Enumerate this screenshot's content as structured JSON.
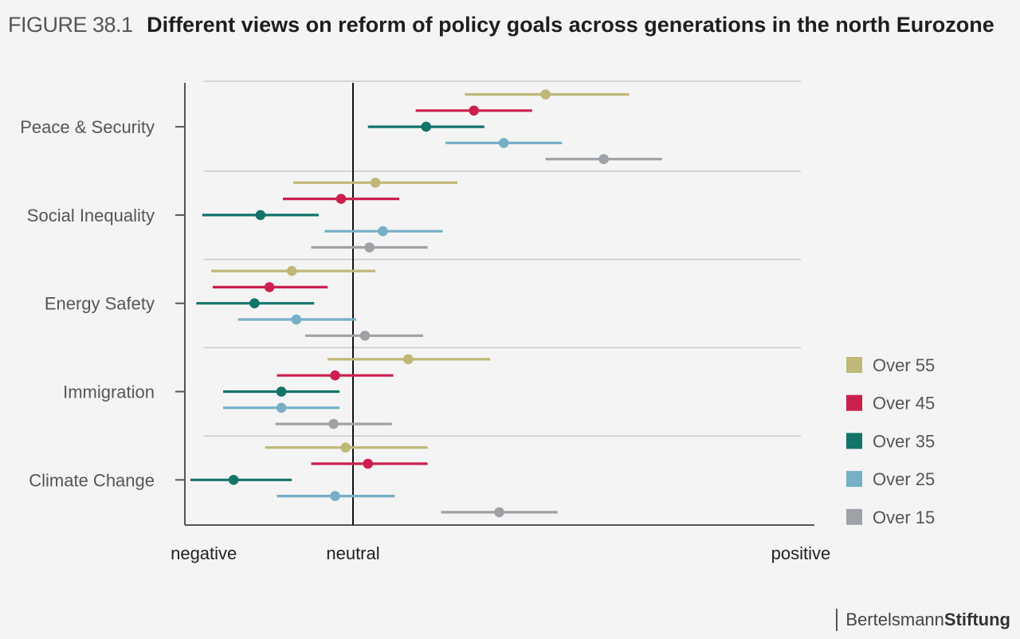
{
  "header": {
    "figure_label": "FIGURE 38.1",
    "title": "Different views on reform of policy goals across generations in the north Eurozone"
  },
  "logo": {
    "part1": "Bertelsmann",
    "part2": "Stiftung"
  },
  "chart_data": {
    "type": "scatter",
    "subtype": "dot-with-interval",
    "title": "Different views on reform of policy goals across generations in the north Eurozone",
    "xlabel": "",
    "ylabel": "",
    "x_scale_note": "unitless: negative=-1, neutral=0, positive=3",
    "x_ticks": [
      {
        "value": -1,
        "label": "negative"
      },
      {
        "value": 0,
        "label": "neutral"
      },
      {
        "value": 3,
        "label": "positive"
      }
    ],
    "xlim": [
      -1.13,
      3.1
    ],
    "reference_line": 0,
    "legend_position": "right",
    "categories": [
      "Peace & Security",
      "Social Inequality",
      "Energy Safety",
      "Immigration",
      "Climate Change"
    ],
    "series": [
      {
        "name": "Over 55",
        "color": "#bfb878",
        "points": [
          {
            "value": 1.29,
            "low": 0.75,
            "high": 1.85
          },
          {
            "value": 0.15,
            "low": -0.4,
            "high": 0.7
          },
          {
            "value": -0.41,
            "low": -0.95,
            "high": 0.15
          },
          {
            "value": 0.37,
            "low": -0.17,
            "high": 0.92
          },
          {
            "value": -0.05,
            "low": -0.59,
            "high": 0.5
          }
        ]
      },
      {
        "name": "Over 45",
        "color": "#cc1f4e",
        "points": [
          {
            "value": 0.81,
            "low": 0.42,
            "high": 1.2
          },
          {
            "value": -0.08,
            "low": -0.47,
            "high": 0.31
          },
          {
            "value": -0.56,
            "low": -0.94,
            "high": -0.17
          },
          {
            "value": -0.12,
            "low": -0.51,
            "high": 0.27
          },
          {
            "value": 0.1,
            "low": -0.28,
            "high": 0.5
          }
        ]
      },
      {
        "name": "Over 35",
        "color": "#137468",
        "points": [
          {
            "value": 0.49,
            "low": 0.1,
            "high": 0.88
          },
          {
            "value": -0.62,
            "low": -1.01,
            "high": -0.23
          },
          {
            "value": -0.66,
            "low": -1.05,
            "high": -0.26
          },
          {
            "value": -0.48,
            "low": -0.87,
            "high": -0.09
          },
          {
            "value": -0.8,
            "low": -1.09,
            "high": -0.41
          }
        ]
      },
      {
        "name": "Over 25",
        "color": "#76afc6",
        "points": [
          {
            "value": 1.01,
            "low": 0.62,
            "high": 1.4
          },
          {
            "value": 0.2,
            "low": -0.19,
            "high": 0.6
          },
          {
            "value": -0.38,
            "low": -0.77,
            "high": 0.02
          },
          {
            "value": -0.48,
            "low": -0.87,
            "high": -0.09
          },
          {
            "value": -0.12,
            "low": -0.51,
            "high": 0.28
          }
        ]
      },
      {
        "name": "Over 15",
        "color": "#9ea2a6",
        "points": [
          {
            "value": 1.68,
            "low": 1.29,
            "high": 2.07
          },
          {
            "value": 0.11,
            "low": -0.28,
            "high": 0.5
          },
          {
            "value": 0.08,
            "low": -0.32,
            "high": 0.47
          },
          {
            "value": -0.13,
            "low": -0.52,
            "high": 0.26
          },
          {
            "value": 0.98,
            "low": 0.59,
            "high": 1.37
          }
        ]
      }
    ]
  }
}
